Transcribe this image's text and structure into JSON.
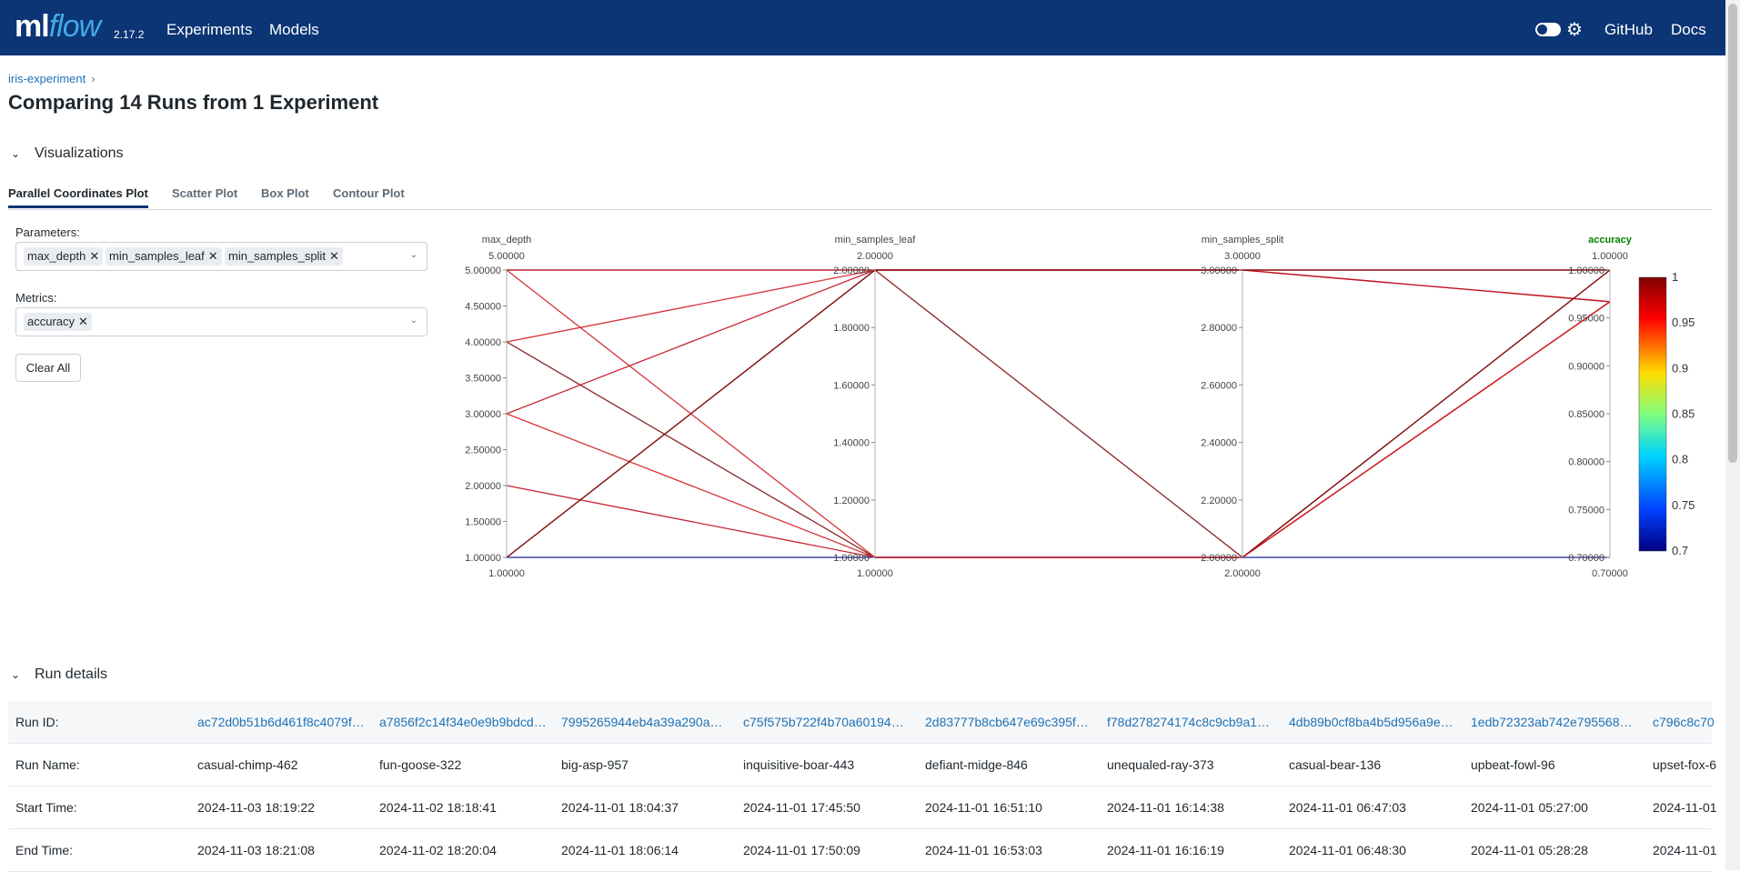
{
  "header": {
    "logo_ml": "ml",
    "logo_flow": "flow",
    "version": "2.17.2",
    "nav": [
      "Experiments",
      "Models"
    ],
    "right_links": [
      "GitHub",
      "Docs"
    ],
    "icons": [
      "theme-toggle",
      "gear-icon"
    ]
  },
  "breadcrumb": {
    "experiment": "iris-experiment",
    "separator": "›"
  },
  "page_title": "Comparing 14 Runs from 1 Experiment",
  "visualizations": {
    "section_label": "Visualizations",
    "tabs": [
      "Parallel Coordinates Plot",
      "Scatter Plot",
      "Box Plot",
      "Contour Plot"
    ],
    "active_tab": "Parallel Coordinates Plot",
    "parameters_label": "Parameters:",
    "parameters": [
      "max_depth",
      "min_samples_leaf",
      "min_samples_split"
    ],
    "metrics_label": "Metrics:",
    "metrics": [
      "accuracy"
    ],
    "clear_all": "Clear All"
  },
  "chart_data": {
    "type": "parallel_coordinates",
    "axes": [
      {
        "name": "max_depth",
        "range": [
          1,
          5
        ],
        "top_label": "5.00000",
        "bottom_label": "1.00000",
        "ticks": [
          "5.00000",
          "4.50000",
          "4.00000",
          "3.50000",
          "3.00000",
          "2.50000",
          "2.00000",
          "1.50000",
          "1.00000"
        ]
      },
      {
        "name": "min_samples_leaf",
        "range": [
          1,
          2
        ],
        "top_label": "2.00000",
        "bottom_label": "1.00000",
        "ticks": [
          "2.00000",
          "1.80000",
          "1.60000",
          "1.40000",
          "1.20000",
          "1.00000"
        ]
      },
      {
        "name": "min_samples_split",
        "range": [
          2,
          3
        ],
        "top_label": "3.00000",
        "bottom_label": "2.00000",
        "ticks": [
          "3.00000",
          "2.80000",
          "2.60000",
          "2.40000",
          "2.20000",
          "2.00000"
        ]
      },
      {
        "name": "accuracy",
        "range": [
          0.7,
          1
        ],
        "top_label": "1.00000",
        "bottom_label": "0.70000",
        "ticks": [
          "1.00000",
          "0.95000",
          "0.90000",
          "0.85000",
          "0.80000",
          "0.75000",
          "0.70000"
        ]
      }
    ],
    "lines": [
      {
        "values": [
          5,
          2,
          3,
          1
        ],
        "color": "#7d0b0b"
      },
      {
        "values": [
          5,
          2,
          3,
          0.967
        ],
        "color": "#c0101e"
      },
      {
        "values": [
          4,
          2,
          3,
          1
        ],
        "color": "#d01d24"
      },
      {
        "values": [
          4,
          1,
          2,
          1
        ],
        "color": "#7d0b0b"
      },
      {
        "values": [
          3,
          2,
          3,
          0.967
        ],
        "color": "#c0101e"
      },
      {
        "values": [
          3,
          1,
          2,
          0.967
        ],
        "color": "#d01d24"
      },
      {
        "values": [
          2,
          1,
          2,
          0.967
        ],
        "color": "#c0101e"
      },
      {
        "values": [
          1,
          2,
          2,
          1
        ],
        "color": "#7d0b0b"
      },
      {
        "values": [
          1,
          2,
          3,
          1
        ],
        "color": "#7d0b0b"
      },
      {
        "values": [
          1,
          1,
          2,
          0.7
        ],
        "color": "#0a0a8a"
      },
      {
        "values": [
          5,
          1,
          2,
          0.967
        ],
        "color": "#d01d24"
      }
    ],
    "colorbar": {
      "min": 0.7,
      "max": 1,
      "ticks": [
        "1",
        "0.95",
        "0.9",
        "0.85",
        "0.8",
        "0.75",
        "0.7"
      ]
    },
    "highlight_axis": "accuracy",
    "highlight_color": "#008000"
  },
  "run_details": {
    "section_label": "Run details",
    "row_labels": [
      "Run ID:",
      "Run Name:",
      "Start Time:",
      "End Time:"
    ],
    "runs": [
      {
        "id": "ac72d0b51b6d461f8c4079f…",
        "name": "casual-chimp-462",
        "start": "2024-11-03 18:19:22",
        "end": "2024-11-03 18:21:08"
      },
      {
        "id": "a7856f2c14f34e0e9b9bdcd…",
        "name": "fun-goose-322",
        "start": "2024-11-02 18:18:41",
        "end": "2024-11-02 18:20:04"
      },
      {
        "id": "7995265944eb4a39a290a…",
        "name": "big-asp-957",
        "start": "2024-11-01 18:04:37",
        "end": "2024-11-01 18:06:14"
      },
      {
        "id": "c75f575b722f4b70a60194…",
        "name": "inquisitive-boar-443",
        "start": "2024-11-01 17:45:50",
        "end": "2024-11-01 17:50:09"
      },
      {
        "id": "2d83777b8cb647e69c395f…",
        "name": "defiant-midge-846",
        "start": "2024-11-01 16:51:10",
        "end": "2024-11-01 16:53:03"
      },
      {
        "id": "f78d278274174c8c9cb9a1…",
        "name": "unequaled-ray-373",
        "start": "2024-11-01 16:14:38",
        "end": "2024-11-01 16:16:19"
      },
      {
        "id": "4db89b0cf8ba4b5d956a9e…",
        "name": "casual-bear-136",
        "start": "2024-11-01 06:47:03",
        "end": "2024-11-01 06:48:30"
      },
      {
        "id": "1edb72323ab742e795568…",
        "name": "upbeat-fowl-96",
        "start": "2024-11-01 05:27:00",
        "end": "2024-11-01 05:28:28"
      },
      {
        "id": "c796c8c70",
        "name": "upset-fox-6",
        "start": "2024-11-01",
        "end": "2024-11-01"
      }
    ]
  }
}
